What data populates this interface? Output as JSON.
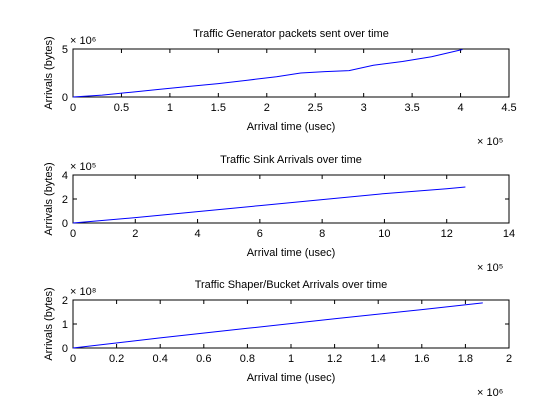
{
  "figure": {
    "background": "#ffffff",
    "line_color": "#0000ff",
    "axis_color": "#000000"
  },
  "chart_data": [
    {
      "type": "line",
      "title": "Traffic Generator packets sent over time",
      "xlabel": "Arrival time (usec)",
      "ylabel": "Arrivals (bytes)",
      "x_multiplier": "× 10⁵",
      "y_multiplier": "× 10⁶",
      "xlim": [
        0,
        4.5
      ],
      "ylim": [
        0,
        5
      ],
      "xticks": [
        0,
        0.5,
        1,
        1.5,
        2,
        2.5,
        3,
        3.5,
        4,
        4.5
      ],
      "xtick_labels": [
        "0",
        "0.5",
        "1",
        "1.5",
        "2",
        "2.5",
        "3",
        "3.5",
        "4",
        "4.5"
      ],
      "yticks": [
        0,
        5
      ],
      "ytick_labels": [
        "0",
        "5"
      ],
      "grid": false,
      "series": [
        {
          "x": [
            0,
            0.3,
            0.6,
            0.9,
            1.2,
            1.5,
            1.8,
            2.1,
            2.35,
            2.6,
            2.85,
            3.1,
            3.4,
            3.7,
            4.02
          ],
          "y": [
            0,
            0.2,
            0.5,
            0.8,
            1.1,
            1.4,
            1.75,
            2.1,
            2.5,
            2.65,
            2.75,
            3.3,
            3.7,
            4.2,
            4.95
          ]
        }
      ]
    },
    {
      "type": "line",
      "title": "Traffic Sink Arrivals over time",
      "xlabel": "Arrival time (usec)",
      "ylabel": "Arrivals (bytes)",
      "x_multiplier": "× 10⁵",
      "y_multiplier": "× 10⁵",
      "xlim": [
        0,
        14
      ],
      "ylim": [
        0,
        4
      ],
      "xticks": [
        0,
        2,
        4,
        6,
        8,
        10,
        12,
        14
      ],
      "xtick_labels": [
        "0",
        "2",
        "4",
        "6",
        "8",
        "10",
        "12",
        "14"
      ],
      "yticks": [
        0,
        2,
        4
      ],
      "ytick_labels": [
        "0",
        "2",
        "4"
      ],
      "grid": false,
      "series": [
        {
          "x": [
            0,
            2,
            4,
            6,
            8,
            10,
            12,
            12.6
          ],
          "y": [
            0,
            0.45,
            0.95,
            1.45,
            1.95,
            2.45,
            2.85,
            3.0
          ]
        }
      ]
    },
    {
      "type": "line",
      "title": "Traffic Shaper/Bucket Arrivals over time",
      "xlabel": "Arrival time (usec)",
      "ylabel": "Arrivals (bytes)",
      "x_multiplier": "× 10⁶",
      "y_multiplier": "× 10⁸",
      "xlim": [
        0,
        2
      ],
      "ylim": [
        0,
        2
      ],
      "xticks": [
        0,
        0.2,
        0.4,
        0.6,
        0.8,
        1,
        1.2,
        1.4,
        1.6,
        1.8,
        2
      ],
      "xtick_labels": [
        "0",
        "0.2",
        "0.4",
        "0.6",
        "0.8",
        "1",
        "1.2",
        "1.4",
        "1.6",
        "1.8",
        "2"
      ],
      "yticks": [
        0,
        1,
        2
      ],
      "ytick_labels": [
        "0",
        "1",
        "2"
      ],
      "grid": false,
      "series": [
        {
          "x": [
            0,
            0.4,
            0.8,
            1.2,
            1.6,
            1.88
          ],
          "y": [
            0,
            0.42,
            0.82,
            1.22,
            1.6,
            1.88
          ]
        }
      ]
    }
  ]
}
